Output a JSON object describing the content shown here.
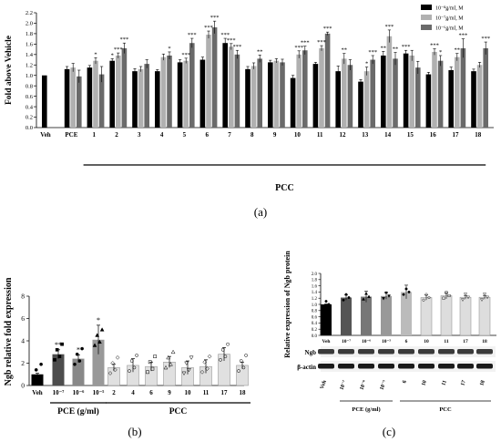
{
  "figure": {
    "panel_labels": [
      "(a)",
      "(b)",
      "(c)"
    ]
  },
  "chart_data": [
    {
      "panel": "(a)",
      "type": "bar",
      "ylabel": "Fold above Vehicle",
      "ylim": [
        0,
        2.2
      ],
      "yticks": [
        0.0,
        0.2,
        0.4,
        0.6,
        0.8,
        1.0,
        1.2,
        1.4,
        1.6,
        1.8,
        2.0,
        2.2
      ],
      "grid": false,
      "legend_position": "top-right",
      "categories": [
        "Veh",
        "PCE",
        "1",
        "2",
        "3",
        "4",
        "5",
        "6",
        "7",
        "8",
        "9",
        "10",
        "11",
        "12",
        "13",
        "14",
        "15",
        "16",
        "17",
        "18"
      ],
      "group_label": "PCC",
      "series": [
        {
          "name": "10⁻⁸g/ml, M",
          "color": "#000000",
          "values": [
            1.0,
            1.12,
            1.15,
            1.28,
            1.08,
            1.08,
            1.25,
            1.3,
            1.62,
            1.12,
            1.25,
            0.95,
            1.22,
            1.08,
            0.88,
            1.38,
            1.42,
            1.02,
            1.1,
            1.08
          ],
          "errors": [
            0.0,
            0.05,
            0.04,
            0.04,
            0.05,
            0.03,
            0.05,
            0.05,
            0.09,
            0.05,
            0.04,
            0.05,
            0.03,
            0.1,
            0.04,
            0.08,
            0.06,
            0.04,
            0.06,
            0.04
          ]
        },
        {
          "name": "10⁻⁷g/ml, M",
          "color": "#b0b0b0",
          "values": [
            null,
            1.15,
            1.28,
            1.38,
            1.12,
            1.35,
            1.28,
            1.78,
            1.55,
            1.18,
            1.28,
            1.4,
            1.52,
            1.32,
            1.08,
            1.75,
            1.38,
            1.45,
            1.35,
            1.2
          ],
          "errors": [
            null,
            0.08,
            0.06,
            0.05,
            0.05,
            0.06,
            0.05,
            0.07,
            0.06,
            0.06,
            0.04,
            0.07,
            0.05,
            0.1,
            0.08,
            0.12,
            0.1,
            0.06,
            0.07,
            0.05
          ]
        },
        {
          "name": "10⁻⁶g/ml, M",
          "color": "#6a6a6a",
          "values": [
            null,
            0.98,
            1.02,
            1.52,
            1.22,
            1.38,
            1.62,
            1.92,
            1.4,
            1.32,
            1.25,
            1.48,
            1.8,
            1.2,
            1.3,
            1.32,
            1.15,
            1.28,
            1.52,
            1.52
          ],
          "errors": [
            null,
            0.12,
            0.15,
            0.1,
            0.08,
            0.07,
            0.09,
            0.12,
            0.08,
            0.07,
            0.06,
            0.08,
            0.03,
            0.1,
            0.08,
            0.12,
            0.12,
            0.1,
            0.18,
            0.12
          ]
        }
      ],
      "annotations": [
        {
          "category": "1",
          "series": 1,
          "text": "*"
        },
        {
          "category": "2",
          "series": 0,
          "text": "*"
        },
        {
          "category": "2",
          "series": 1,
          "text": "***"
        },
        {
          "category": "2",
          "series": 2,
          "text": "***"
        },
        {
          "category": "4",
          "series": 2,
          "text": "*"
        },
        {
          "category": "5",
          "series": 1,
          "text": "***"
        },
        {
          "category": "5",
          "series": 2,
          "text": "***"
        },
        {
          "category": "6",
          "series": 1,
          "text": "***"
        },
        {
          "category": "6",
          "series": 2,
          "text": "***"
        },
        {
          "category": "7",
          "series": 0,
          "text": "***"
        },
        {
          "category": "7",
          "series": 1,
          "text": "***"
        },
        {
          "category": "7",
          "series": 2,
          "text": "***"
        },
        {
          "category": "8",
          "series": 2,
          "text": "**"
        },
        {
          "category": "10",
          "series": 1,
          "text": "***"
        },
        {
          "category": "10",
          "series": 2,
          "text": "***"
        },
        {
          "category": "11",
          "series": 1,
          "text": "***"
        },
        {
          "category": "11",
          "series": 2,
          "text": "***"
        },
        {
          "category": "12",
          "series": 1,
          "text": "**"
        },
        {
          "category": "13",
          "series": 1,
          "text": "*"
        },
        {
          "category": "13",
          "series": 2,
          "text": "***"
        },
        {
          "category": "14",
          "series": 0,
          "text": "**"
        },
        {
          "category": "14",
          "series": 1,
          "text": "***"
        },
        {
          "category": "14",
          "series": 2,
          "text": "**"
        },
        {
          "category": "15",
          "series": 0,
          "text": "***"
        },
        {
          "category": "16",
          "series": 1,
          "text": "***"
        },
        {
          "category": "16",
          "series": 2,
          "text": "*"
        },
        {
          "category": "17",
          "series": 1,
          "text": "**"
        },
        {
          "category": "17",
          "series": 2,
          "text": "***"
        },
        {
          "category": "18",
          "series": 2,
          "text": "***"
        }
      ]
    },
    {
      "panel": "(b)",
      "type": "bar",
      "ylabel": "Ngb relative fold expression",
      "ylim": [
        0,
        8
      ],
      "yticks": [
        0,
        2,
        4,
        6,
        8
      ],
      "grid": false,
      "categories": [
        "Veh",
        "10⁻⁷",
        "10⁻⁶",
        "10⁻⁵",
        "2",
        "4",
        "6",
        "9",
        "10",
        "11",
        "17",
        "18"
      ],
      "group_labels": [
        {
          "text": "PCE (g/ml)",
          "from": 1,
          "to": 3
        },
        {
          "text": "PCC",
          "from": 4,
          "to": 11
        }
      ],
      "values": [
        1.0,
        2.8,
        2.4,
        4.1,
        1.6,
        1.8,
        1.7,
        2.1,
        1.6,
        1.7,
        2.8,
        1.8
      ],
      "errors": [
        0.1,
        0.4,
        0.35,
        1.3,
        0.3,
        0.6,
        0.4,
        0.5,
        0.6,
        0.6,
        0.6,
        0.3
      ],
      "bar_colors": [
        "#000000",
        "#4d4d4d",
        "#888888",
        "#999999",
        "#e0e0e0",
        "#e0e0e0",
        "#e0e0e0",
        "#e0e0e0",
        "#e0e0e0",
        "#e0e0e0",
        "#e0e0e0",
        "#e0e0e0"
      ],
      "annotations": [
        {
          "category": "10⁻⁷",
          "text": "**"
        },
        {
          "category": "10⁻⁶",
          "text": "*"
        },
        {
          "category": "10⁻⁵",
          "text": "*"
        }
      ]
    },
    {
      "panel": "(c)",
      "type": "bar",
      "ylabel": "Relative expression of Ngb protein",
      "ylim": [
        0,
        2.0
      ],
      "yticks": [
        0.0,
        0.2,
        0.4,
        0.6,
        0.8,
        1.0,
        1.2,
        1.4,
        1.6,
        1.8,
        2.0
      ],
      "grid": false,
      "categories": [
        "Veh",
        "10⁻⁷",
        "10⁻⁶",
        "10⁻⁵",
        "6",
        "10",
        "11",
        "17",
        "18"
      ],
      "values": [
        1.0,
        1.22,
        1.25,
        1.27,
        1.4,
        1.22,
        1.28,
        1.23,
        1.23
      ],
      "errors": [
        0.02,
        0.08,
        0.18,
        0.1,
        0.22,
        0.08,
        0.1,
        0.06,
        0.06
      ],
      "bar_colors": [
        "#000000",
        "#555555",
        "#777777",
        "#999999",
        "#bbbbbb",
        "#dddddd",
        "#dddddd",
        "#dddddd",
        "#dddddd"
      ],
      "blot_rows": [
        "Ngb",
        "β-actin"
      ],
      "blot_lanes": [
        "Veh",
        "10⁻⁷",
        "10⁻⁶",
        "10⁻⁵",
        "6",
        "10",
        "11",
        "17",
        "18"
      ],
      "group_labels": [
        {
          "text": "PCE (g/ml)",
          "from": 1,
          "to": 3
        },
        {
          "text": "PCC",
          "from": 4,
          "to": 8
        }
      ]
    }
  ]
}
